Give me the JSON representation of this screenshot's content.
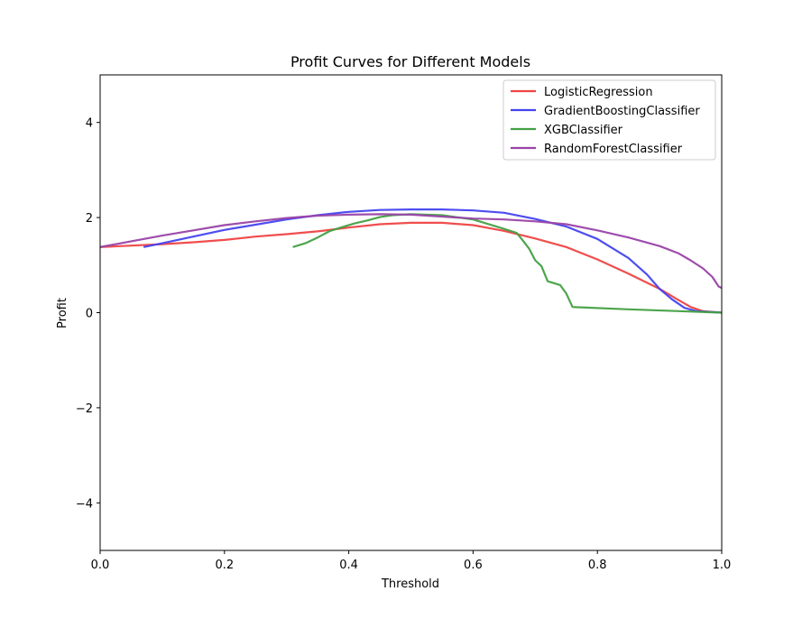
{
  "chart_data": {
    "type": "line",
    "title": "Profit Curves for Different Models",
    "xlabel": "Threshold",
    "ylabel": "Profit",
    "xlim": [
      0.0,
      1.0
    ],
    "ylim": [
      -5,
      5
    ],
    "xticks": [
      {
        "value": 0.0,
        "label": "0.0"
      },
      {
        "value": 0.2,
        "label": "0.2"
      },
      {
        "value": 0.4,
        "label": "0.4"
      },
      {
        "value": 0.6,
        "label": "0.6"
      },
      {
        "value": 0.8,
        "label": "0.8"
      },
      {
        "value": 1.0,
        "label": "1.0"
      }
    ],
    "yticks": [
      {
        "value": -4,
        "label": "−4"
      },
      {
        "value": -2,
        "label": "−2"
      },
      {
        "value": 0,
        "label": "0"
      },
      {
        "value": 2,
        "label": "2"
      },
      {
        "value": 4,
        "label": "4"
      }
    ],
    "grid": false,
    "legend": "top-right",
    "series": [
      {
        "name": "LogisticRegression",
        "color": "#ef4343",
        "points": [
          [
            0.0,
            1.38
          ],
          [
            0.05,
            1.41
          ],
          [
            0.1,
            1.44
          ],
          [
            0.15,
            1.48
          ],
          [
            0.2,
            1.53
          ],
          [
            0.25,
            1.6
          ],
          [
            0.3,
            1.65
          ],
          [
            0.35,
            1.71
          ],
          [
            0.4,
            1.79
          ],
          [
            0.45,
            1.86
          ],
          [
            0.5,
            1.89
          ],
          [
            0.55,
            1.89
          ],
          [
            0.6,
            1.84
          ],
          [
            0.65,
            1.72
          ],
          [
            0.7,
            1.56
          ],
          [
            0.75,
            1.38
          ],
          [
            0.8,
            1.12
          ],
          [
            0.85,
            0.82
          ],
          [
            0.9,
            0.5
          ],
          [
            0.93,
            0.27
          ],
          [
            0.95,
            0.12
          ],
          [
            0.97,
            0.03
          ],
          [
            1.0,
            0.0
          ]
        ]
      },
      {
        "name": "GradientBoostingClassifier",
        "color": "#4343ef",
        "points": [
          [
            0.07,
            1.38
          ],
          [
            0.1,
            1.46
          ],
          [
            0.15,
            1.6
          ],
          [
            0.2,
            1.74
          ],
          [
            0.25,
            1.85
          ],
          [
            0.3,
            1.96
          ],
          [
            0.35,
            2.05
          ],
          [
            0.4,
            2.12
          ],
          [
            0.45,
            2.16
          ],
          [
            0.5,
            2.17
          ],
          [
            0.55,
            2.17
          ],
          [
            0.6,
            2.15
          ],
          [
            0.65,
            2.1
          ],
          [
            0.7,
            1.97
          ],
          [
            0.75,
            1.81
          ],
          [
            0.8,
            1.55
          ],
          [
            0.85,
            1.15
          ],
          [
            0.88,
            0.8
          ],
          [
            0.9,
            0.5
          ],
          [
            0.92,
            0.28
          ],
          [
            0.94,
            0.1
          ],
          [
            0.96,
            0.03
          ],
          [
            1.0,
            0.0
          ]
        ]
      },
      {
        "name": "XGBClassifier",
        "color": "#43a043",
        "points": [
          [
            0.31,
            1.38
          ],
          [
            0.33,
            1.46
          ],
          [
            0.35,
            1.58
          ],
          [
            0.37,
            1.72
          ],
          [
            0.39,
            1.8
          ],
          [
            0.41,
            1.88
          ],
          [
            0.43,
            1.94
          ],
          [
            0.45,
            2.01
          ],
          [
            0.47,
            2.05
          ],
          [
            0.5,
            2.07
          ],
          [
            0.55,
            2.05
          ],
          [
            0.6,
            1.96
          ],
          [
            0.64,
            1.8
          ],
          [
            0.67,
            1.68
          ],
          [
            0.68,
            1.52
          ],
          [
            0.69,
            1.35
          ],
          [
            0.7,
            1.1
          ],
          [
            0.71,
            0.98
          ],
          [
            0.72,
            0.66
          ],
          [
            0.74,
            0.58
          ],
          [
            0.75,
            0.4
          ],
          [
            0.76,
            0.12
          ],
          [
            0.85,
            0.07
          ],
          [
            1.0,
            0.0
          ]
        ]
      },
      {
        "name": "RandomForestClassifier",
        "color": "#9943a8",
        "points": [
          [
            0.0,
            1.38
          ],
          [
            0.05,
            1.5
          ],
          [
            0.1,
            1.62
          ],
          [
            0.15,
            1.73
          ],
          [
            0.2,
            1.84
          ],
          [
            0.25,
            1.92
          ],
          [
            0.3,
            1.99
          ],
          [
            0.35,
            2.04
          ],
          [
            0.4,
            2.06
          ],
          [
            0.45,
            2.07
          ],
          [
            0.5,
            2.06
          ],
          [
            0.55,
            2.02
          ],
          [
            0.6,
            1.98
          ],
          [
            0.65,
            1.96
          ],
          [
            0.7,
            1.92
          ],
          [
            0.75,
            1.86
          ],
          [
            0.8,
            1.73
          ],
          [
            0.85,
            1.58
          ],
          [
            0.9,
            1.4
          ],
          [
            0.93,
            1.25
          ],
          [
            0.95,
            1.1
          ],
          [
            0.97,
            0.93
          ],
          [
            0.985,
            0.75
          ],
          [
            0.995,
            0.55
          ],
          [
            1.0,
            0.52
          ]
        ]
      }
    ]
  }
}
